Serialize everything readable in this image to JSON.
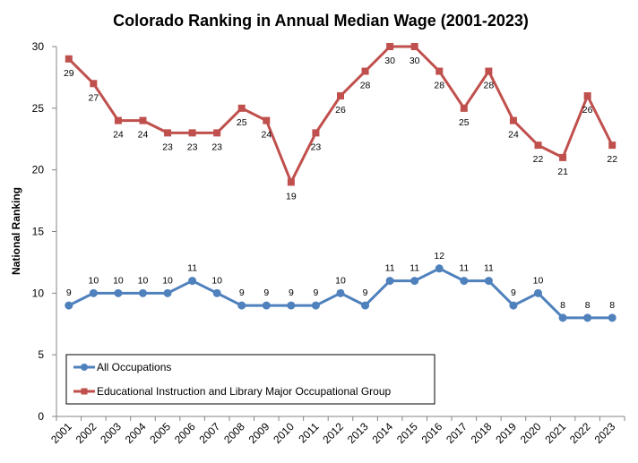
{
  "chart_data": {
    "type": "line",
    "title": "Colorado Ranking in Annual Median Wage (2001-2023)",
    "xlabel": "",
    "ylabel": "National Ranking",
    "ylim": [
      0,
      30
    ],
    "yticks": [
      0,
      5,
      10,
      15,
      20,
      25,
      30
    ],
    "grid": false,
    "legend_position": "bottom-left",
    "categories": [
      "2001",
      "2002",
      "2003",
      "2004",
      "2005",
      "2006",
      "2007",
      "2008",
      "2009",
      "2010",
      "2011",
      "2012",
      "2013",
      "2014",
      "2015",
      "2016",
      "2017",
      "2018",
      "2019",
      "2020",
      "2021",
      "2022",
      "2023"
    ],
    "series": [
      {
        "name": "All Occupations",
        "color": "#4F81BD",
        "marker": "circle",
        "label_position": "above",
        "values": [
          9,
          10,
          10,
          10,
          10,
          11,
          10,
          9,
          9,
          9,
          9,
          10,
          9,
          11,
          11,
          12,
          11,
          11,
          9,
          10,
          8,
          8,
          8
        ]
      },
      {
        "name": "Educational Instruction and Library Major Occupational Group",
        "color": "#C0504D",
        "marker": "square",
        "label_position": "below",
        "values": [
          29,
          27,
          24,
          24,
          23,
          23,
          23,
          25,
          24,
          19,
          23,
          26,
          28,
          30,
          30,
          28,
          25,
          28,
          24,
          22,
          21,
          26,
          22
        ]
      }
    ]
  }
}
